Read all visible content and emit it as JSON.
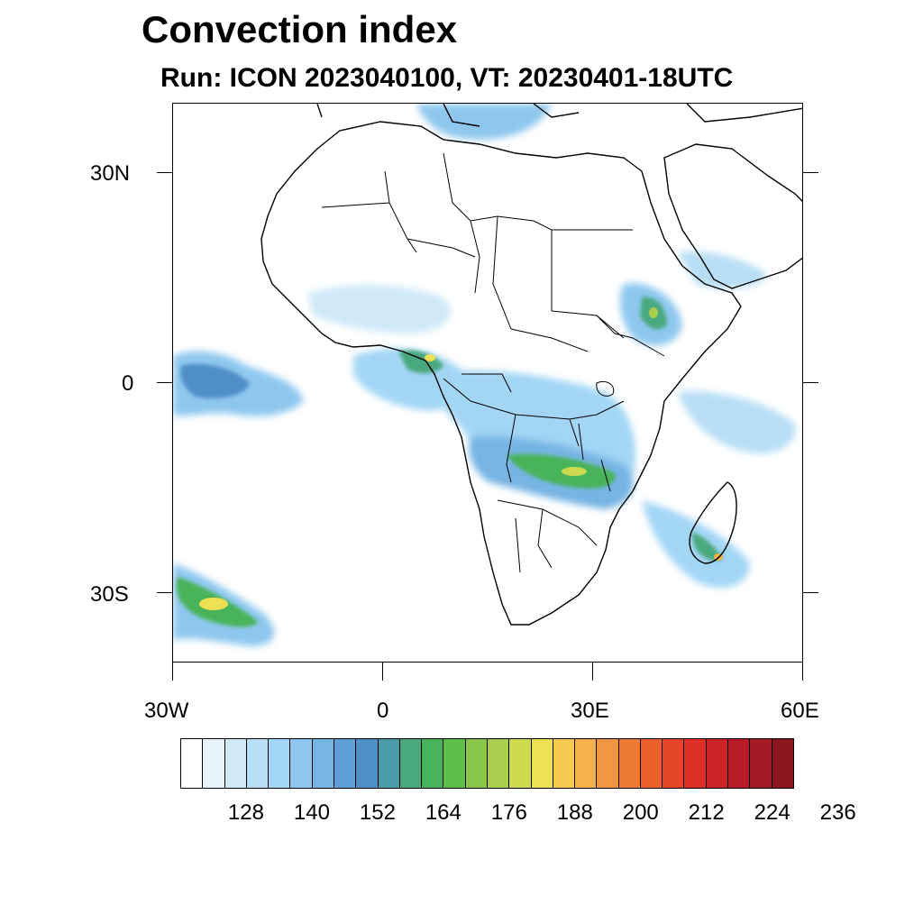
{
  "title": "Convection index",
  "subtitle": "Run: ICON 2023040100,  VT: 20230401-18UTC",
  "map": {
    "region": "Africa",
    "lon_range": [
      -30,
      60
    ],
    "lat_range": [
      -40,
      40
    ],
    "lat_labels": [
      "30N",
      "0",
      "30S"
    ],
    "lon_labels": [
      "30W",
      "0",
      "30E",
      "60E"
    ]
  },
  "colorbar": {
    "colors": [
      "#ffffff",
      "#e8f4fb",
      "#cfe9f7",
      "#b8def5",
      "#a3d6f5",
      "#8ec7ee",
      "#76b4e4",
      "#5f9fd8",
      "#4f8fc8",
      "#4a9aa8",
      "#4aa87e",
      "#48b35a",
      "#5bbf4a",
      "#86c648",
      "#a8cf4c",
      "#cdd94f",
      "#ede053",
      "#f6c94f",
      "#f4b04a",
      "#f29540",
      "#ef7a35",
      "#ea5f2c",
      "#e44428",
      "#dc2f28",
      "#cc2127",
      "#b81d25",
      "#a21a22",
      "#8c161e"
    ],
    "tick_labels": [
      "128",
      "140",
      "152",
      "164",
      "176",
      "188",
      "200",
      "212",
      "224",
      "236"
    ]
  }
}
